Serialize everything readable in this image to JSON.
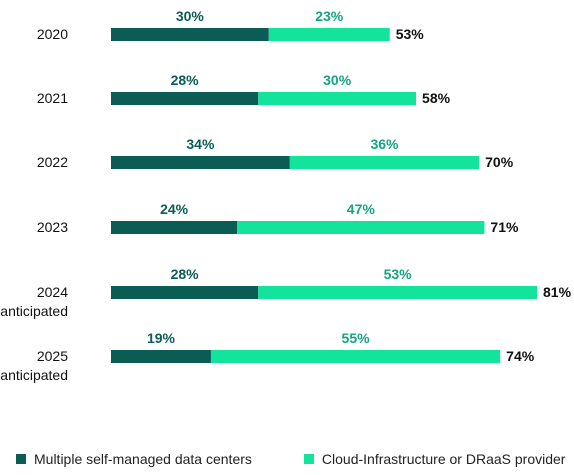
{
  "chart_data": {
    "type": "bar",
    "orientation": "horizontal",
    "stacked": true,
    "categories": [
      [
        "2020"
      ],
      [
        "2021"
      ],
      [
        "2022"
      ],
      [
        "2023"
      ],
      [
        "2024",
        "anticipated"
      ],
      [
        "2025",
        "anticipated"
      ]
    ],
    "series": [
      {
        "name": "Multiple self-managed data centers",
        "color": "#0b5c55",
        "values": [
          30,
          28,
          34,
          24,
          28,
          19
        ],
        "labels": [
          "30%",
          "28%",
          "34%",
          "24%",
          "28%",
          "19%"
        ]
      },
      {
        "name": "Cloud-Infrastructure or DRaaS provider",
        "color": "#13e39b",
        "values": [
          23,
          30,
          36,
          47,
          53,
          55
        ],
        "labels": [
          "23%",
          "30%",
          "36%",
          "47%",
          "53%",
          "55%"
        ]
      }
    ],
    "totals": [
      53,
      58,
      70,
      71,
      81,
      74
    ],
    "total_labels": [
      "53%",
      "58%",
      "70%",
      "71%",
      "81%",
      "74%"
    ],
    "xlim": [
      0,
      81
    ],
    "title": "",
    "xlabel": "",
    "ylabel": "",
    "grid": false,
    "legend_position": "bottom-left"
  }
}
